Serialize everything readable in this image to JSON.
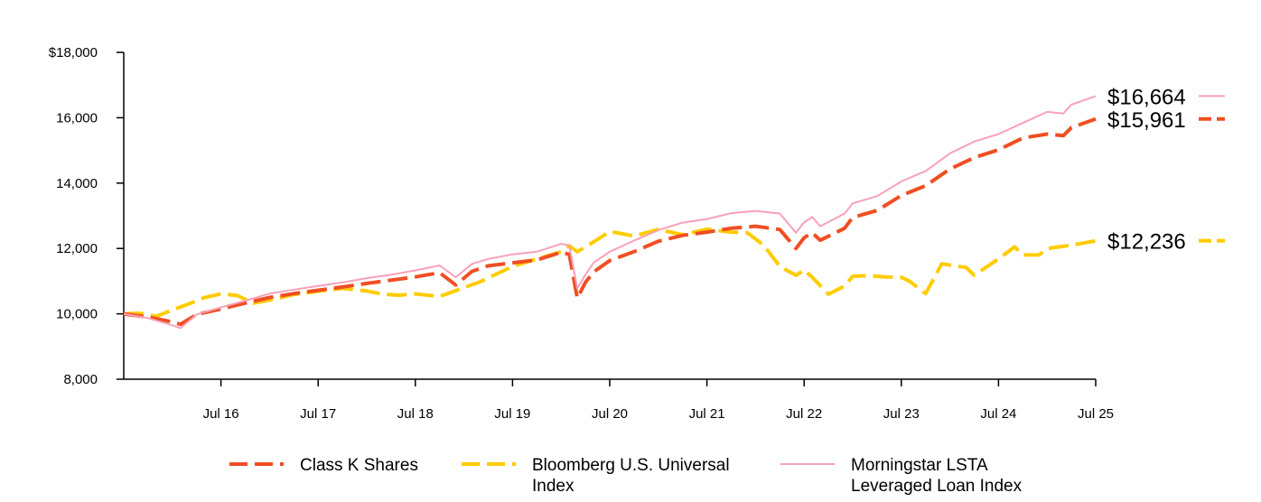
{
  "chart_data": {
    "type": "line",
    "title": "",
    "xlabel": "",
    "ylabel": "",
    "ylim": [
      8000,
      18000
    ],
    "yticks": [
      {
        "value": 18000,
        "label": "$18,000"
      },
      {
        "value": 16000,
        "label": "16,000"
      },
      {
        "value": 14000,
        "label": "14,000"
      },
      {
        "value": 12000,
        "label": "12,000"
      },
      {
        "value": 10000,
        "label": "10,000"
      },
      {
        "value": 8000,
        "label": "8,000"
      }
    ],
    "xlim": [
      "2015-07",
      "2025-07"
    ],
    "xticks": [
      {
        "date": "2016-07",
        "label": "Jul 16"
      },
      {
        "date": "2017-07",
        "label": "Jul 17"
      },
      {
        "date": "2018-07",
        "label": "Jul 18"
      },
      {
        "date": "2019-07",
        "label": "Jul 19"
      },
      {
        "date": "2020-07",
        "label": "Jul 20"
      },
      {
        "date": "2021-07",
        "label": "Jul 21"
      },
      {
        "date": "2022-07",
        "label": "Jul 22"
      },
      {
        "date": "2023-07",
        "label": "Jul 23"
      },
      {
        "date": "2024-07",
        "label": "Jul 24"
      },
      {
        "date": "2025-07",
        "label": "Jul 25"
      }
    ],
    "legend_position": "bottom",
    "series": [
      {
        "name": "Class K Shares",
        "color": "#F04E23",
        "style": "dashed",
        "end_label": "$15,961",
        "points": [
          [
            "2015-07",
            10000
          ],
          [
            "2015-10",
            9900
          ],
          [
            "2016-01",
            9750
          ],
          [
            "2016-02",
            9680
          ],
          [
            "2016-04",
            9980
          ],
          [
            "2016-07",
            10150
          ],
          [
            "2016-10",
            10330
          ],
          [
            "2017-01",
            10500
          ],
          [
            "2017-04",
            10620
          ],
          [
            "2017-07",
            10720
          ],
          [
            "2017-10",
            10820
          ],
          [
            "2018-01",
            10930
          ],
          [
            "2018-04",
            11030
          ],
          [
            "2018-07",
            11130
          ],
          [
            "2018-10",
            11260
          ],
          [
            "2018-12",
            10880
          ],
          [
            "2019-02",
            11300
          ],
          [
            "2019-04",
            11470
          ],
          [
            "2019-07",
            11560
          ],
          [
            "2019-10",
            11650
          ],
          [
            "2020-01",
            11880
          ],
          [
            "2020-02",
            11820
          ],
          [
            "2020-03",
            10480
          ],
          [
            "2020-04",
            10960
          ],
          [
            "2020-05",
            11280
          ],
          [
            "2020-07",
            11630
          ],
          [
            "2020-10",
            11900
          ],
          [
            "2021-01",
            12220
          ],
          [
            "2021-04",
            12400
          ],
          [
            "2021-07",
            12500
          ],
          [
            "2021-10",
            12620
          ],
          [
            "2022-01",
            12680
          ],
          [
            "2022-04",
            12580
          ],
          [
            "2022-06",
            12000
          ],
          [
            "2022-07",
            12330
          ],
          [
            "2022-08",
            12480
          ],
          [
            "2022-09",
            12250
          ],
          [
            "2022-12",
            12620
          ],
          [
            "2023-01",
            12950
          ],
          [
            "2023-04",
            13160
          ],
          [
            "2023-07",
            13620
          ],
          [
            "2023-10",
            13920
          ],
          [
            "2024-01",
            14430
          ],
          [
            "2024-04",
            14780
          ],
          [
            "2024-07",
            15020
          ],
          [
            "2024-10",
            15380
          ],
          [
            "2025-01",
            15500
          ],
          [
            "2025-03",
            15450
          ],
          [
            "2025-04",
            15700
          ],
          [
            "2025-07",
            15961
          ]
        ]
      },
      {
        "name": "Bloomberg U.S. Universal Index",
        "color": "#FFCC00",
        "style": "dashed",
        "end_label": "$12,236",
        "points": [
          [
            "2015-07",
            10000
          ],
          [
            "2015-09",
            10020
          ],
          [
            "2015-11",
            9920
          ],
          [
            "2016-01",
            10120
          ],
          [
            "2016-03",
            10300
          ],
          [
            "2016-05",
            10500
          ],
          [
            "2016-07",
            10610
          ],
          [
            "2016-09",
            10560
          ],
          [
            "2016-11",
            10330
          ],
          [
            "2017-01",
            10420
          ],
          [
            "2017-04",
            10590
          ],
          [
            "2017-07",
            10690
          ],
          [
            "2017-10",
            10780
          ],
          [
            "2018-01",
            10700
          ],
          [
            "2018-03",
            10600
          ],
          [
            "2018-05",
            10570
          ],
          [
            "2018-07",
            10610
          ],
          [
            "2018-10",
            10530
          ],
          [
            "2018-12",
            10710
          ],
          [
            "2019-03",
            10980
          ],
          [
            "2019-07",
            11450
          ],
          [
            "2019-10",
            11680
          ],
          [
            "2020-01",
            11900
          ],
          [
            "2020-02",
            12080
          ],
          [
            "2020-03",
            11900
          ],
          [
            "2020-05",
            12200
          ],
          [
            "2020-07",
            12520
          ],
          [
            "2020-10",
            12380
          ],
          [
            "2021-01",
            12580
          ],
          [
            "2021-04",
            12420
          ],
          [
            "2021-07",
            12590
          ],
          [
            "2021-10",
            12500
          ],
          [
            "2021-12",
            12480
          ],
          [
            "2022-02",
            12100
          ],
          [
            "2022-04",
            11450
          ],
          [
            "2022-06",
            11180
          ],
          [
            "2022-07",
            11340
          ],
          [
            "2022-08",
            11120
          ],
          [
            "2022-10",
            10600
          ],
          [
            "2022-12",
            10850
          ],
          [
            "2023-01",
            11150
          ],
          [
            "2023-03",
            11170
          ],
          [
            "2023-05",
            11130
          ],
          [
            "2023-07",
            11120
          ],
          [
            "2023-08",
            11000
          ],
          [
            "2023-10",
            10620
          ],
          [
            "2023-12",
            11530
          ],
          [
            "2024-03",
            11420
          ],
          [
            "2024-04",
            11180
          ],
          [
            "2024-07",
            11680
          ],
          [
            "2024-09",
            12050
          ],
          [
            "2024-10",
            11800
          ],
          [
            "2024-12",
            11800
          ],
          [
            "2025-01",
            12000
          ],
          [
            "2025-04",
            12100
          ],
          [
            "2025-07",
            12236
          ]
        ]
      },
      {
        "name": "Morningstar LSTA Leveraged Loan Index",
        "color": "#F7A1B8",
        "style": "solid",
        "end_label": "$16,664",
        "points": [
          [
            "2015-07",
            10000
          ],
          [
            "2015-10",
            9870
          ],
          [
            "2016-01",
            9650
          ],
          [
            "2016-02",
            9560
          ],
          [
            "2016-04",
            9980
          ],
          [
            "2016-07",
            10200
          ],
          [
            "2016-10",
            10400
          ],
          [
            "2017-01",
            10620
          ],
          [
            "2017-04",
            10740
          ],
          [
            "2017-07",
            10850
          ],
          [
            "2017-10",
            10960
          ],
          [
            "2018-01",
            11090
          ],
          [
            "2018-04",
            11200
          ],
          [
            "2018-07",
            11330
          ],
          [
            "2018-10",
            11480
          ],
          [
            "2018-12",
            11120
          ],
          [
            "2019-02",
            11530
          ],
          [
            "2019-04",
            11680
          ],
          [
            "2019-07",
            11820
          ],
          [
            "2019-10",
            11900
          ],
          [
            "2020-01",
            12140
          ],
          [
            "2020-02",
            12100
          ],
          [
            "2020-03",
            10780
          ],
          [
            "2020-04",
            11200
          ],
          [
            "2020-05",
            11560
          ],
          [
            "2020-07",
            11900
          ],
          [
            "2020-10",
            12240
          ],
          [
            "2021-01",
            12560
          ],
          [
            "2021-04",
            12790
          ],
          [
            "2021-07",
            12900
          ],
          [
            "2021-10",
            13080
          ],
          [
            "2022-01",
            13150
          ],
          [
            "2022-04",
            13070
          ],
          [
            "2022-06",
            12480
          ],
          [
            "2022-07",
            12800
          ],
          [
            "2022-08",
            12960
          ],
          [
            "2022-09",
            12680
          ],
          [
            "2022-12",
            13070
          ],
          [
            "2023-01",
            13380
          ],
          [
            "2023-04",
            13600
          ],
          [
            "2023-07",
            14050
          ],
          [
            "2023-10",
            14370
          ],
          [
            "2024-01",
            14910
          ],
          [
            "2024-04",
            15270
          ],
          [
            "2024-07",
            15500
          ],
          [
            "2024-10",
            15840
          ],
          [
            "2025-01",
            16180
          ],
          [
            "2025-03",
            16130
          ],
          [
            "2025-04",
            16400
          ],
          [
            "2025-07",
            16664
          ]
        ]
      }
    ]
  }
}
